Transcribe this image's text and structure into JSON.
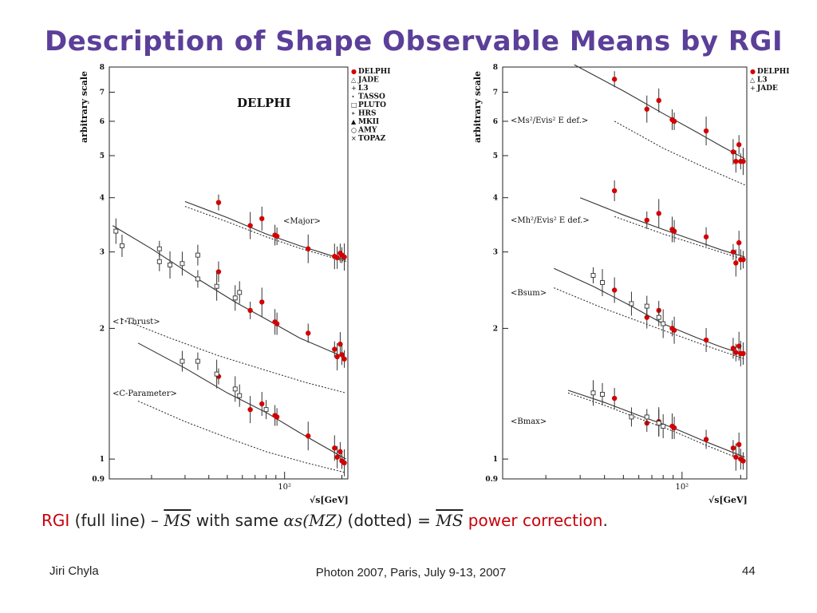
{
  "slide": {
    "title": "Description of Shape Observable Means by RGI",
    "caption": {
      "rgi": "RGI",
      "part1": " (full line) – ",
      "ms1": "MS",
      "part2": " with same ",
      "alpha": "αs(MZ)",
      "part3": " (dotted) = ",
      "ms2": "MS",
      "part4": " power correction",
      "period": "."
    },
    "footer": {
      "author": "Jiri Chyla",
      "event": "Photon 2007, Paris, July 9-13, 2007",
      "page": "44"
    }
  },
  "colors": {
    "title": "#5b3f99",
    "delphi": "#d40000",
    "fit": "#333333",
    "caption_red": "#c8000a"
  },
  "chart_data": [
    {
      "type": "scatter",
      "title": "DELPHI",
      "ylabel": "arbitrary scale",
      "xlabel": "√s[GeV]",
      "log_x": true,
      "log_y": true,
      "xlim": [
        12,
        215
      ],
      "ylim": [
        0.9,
        8
      ],
      "x_ticks": [
        "10²"
      ],
      "y_ticks": [
        "0.9",
        "1",
        "2",
        "3",
        "4",
        "5",
        "6",
        "7",
        "8"
      ],
      "legend": [
        "DELPHI",
        "JADE",
        "L3",
        "TASSO",
        "PLUTO",
        "HRS",
        "MKII",
        "AMY",
        "TOPAZ"
      ],
      "legend_placement": "top-right outside",
      "curve_labels": [
        "<Major>",
        "<1-Thrust>",
        "<C-Parameter>"
      ],
      "series": [
        {
          "name": "<Major> DELPHI",
          "marker": "dot",
          "x": [
            45,
            66,
            76,
            89,
            91.2,
            133,
            183,
            189,
            196,
            200,
            206
          ],
          "y": [
            3.9,
            3.45,
            3.58,
            3.28,
            3.26,
            3.05,
            2.93,
            2.91,
            2.98,
            2.95,
            2.92
          ]
        },
        {
          "name": "<1-Thrust> DELPHI",
          "marker": "dot",
          "x": [
            45,
            66,
            76,
            89,
            91.2,
            133,
            183,
            189,
            196,
            200,
            206
          ],
          "y": [
            2.7,
            2.2,
            2.3,
            2.07,
            2.05,
            1.95,
            1.79,
            1.72,
            1.84,
            1.74,
            1.7
          ]
        },
        {
          "name": "<1-Thrust> other",
          "marker": "open",
          "x": [
            13,
            14,
            22,
            22,
            25,
            29,
            35,
            35,
            44,
            55,
            58
          ],
          "y": [
            3.35,
            3.1,
            2.85,
            3.05,
            2.8,
            2.82,
            2.95,
            2.6,
            2.5,
            2.35,
            2.42
          ]
        },
        {
          "name": "<C-Parameter> DELPHI",
          "marker": "dot",
          "x": [
            45,
            66,
            76,
            89,
            91.2,
            133,
            183,
            189,
            196,
            200,
            206
          ],
          "y": [
            1.55,
            1.3,
            1.34,
            1.26,
            1.25,
            1.13,
            1.06,
            1.01,
            1.04,
            0.99,
            0.98
          ]
        },
        {
          "name": "<C-Parameter> other",
          "marker": "open",
          "x": [
            29,
            35,
            44,
            55,
            58,
            80
          ],
          "y": [
            1.68,
            1.68,
            1.57,
            1.45,
            1.4,
            1.3
          ]
        }
      ],
      "fits": [
        {
          "name": "<Major> RGI",
          "style": "solid",
          "x": [
            30,
            50,
            80,
            120,
            160,
            210
          ],
          "y": [
            3.92,
            3.6,
            3.3,
            3.1,
            2.98,
            2.87
          ]
        },
        {
          "name": "<Major> MS-bar",
          "style": "dotted",
          "x": [
            30,
            50,
            80,
            120,
            160,
            210
          ],
          "y": [
            3.82,
            3.52,
            3.25,
            3.06,
            2.95,
            2.85
          ]
        },
        {
          "name": "<1-Thrust> RGI",
          "style": "solid",
          "x": [
            12.5,
            20,
            35,
            55,
            80,
            120,
            160,
            210
          ],
          "y": [
            3.45,
            3.05,
            2.6,
            2.3,
            2.1,
            1.9,
            1.8,
            1.71
          ]
        },
        {
          "name": "<1-Thrust> MS-bar",
          "style": "dotted",
          "x": [
            14,
            25,
            45,
            80,
            130,
            210
          ],
          "y": [
            2.1,
            1.9,
            1.73,
            1.6,
            1.5,
            1.42
          ]
        },
        {
          "name": "<C-Parameter> RGI",
          "style": "solid",
          "x": [
            17,
            30,
            50,
            80,
            120,
            160,
            210
          ],
          "y": [
            1.85,
            1.62,
            1.42,
            1.28,
            1.15,
            1.07,
            1.0
          ]
        },
        {
          "name": "<C-Parameter> MS-bar",
          "style": "dotted",
          "x": [
            17,
            30,
            50,
            80,
            130,
            210
          ],
          "y": [
            1.36,
            1.22,
            1.12,
            1.04,
            0.98,
            0.93
          ]
        }
      ]
    },
    {
      "type": "scatter",
      "ylabel": "arbitrary scale",
      "xlabel": "√s[GeV]",
      "log_x": true,
      "log_y": true,
      "xlim": [
        12,
        215
      ],
      "ylim": [
        0.9,
        8
      ],
      "x_ticks": [
        "10²"
      ],
      "y_ticks": [
        "0.9",
        "1",
        "2",
        "3",
        "4",
        "5",
        "6",
        "7",
        "8"
      ],
      "legend": [
        "DELPHI",
        "L3",
        "JADE"
      ],
      "legend_placement": "top-right outside",
      "curve_labels": [
        "<Ms²/Evis² E def.>",
        "<Mh²/Evis² E def.>",
        "<Bsum>",
        "<Bmax>"
      ],
      "series": [
        {
          "name": "<Ms2/Evis2> DELPHI",
          "marker": "dot",
          "x": [
            45,
            66,
            76,
            89,
            91.2,
            133,
            183,
            189,
            196,
            200,
            206
          ],
          "y": [
            7.5,
            6.4,
            6.7,
            6.05,
            6.0,
            5.7,
            5.1,
            4.85,
            5.3,
            4.85,
            4.85
          ]
        },
        {
          "name": "<Mh2/Evis2> DELPHI",
          "marker": "dot",
          "x": [
            45,
            66,
            76,
            89,
            91.2,
            133,
            183,
            189,
            196,
            200,
            206
          ],
          "y": [
            4.15,
            3.55,
            3.68,
            3.38,
            3.35,
            3.25,
            3.0,
            2.83,
            3.15,
            2.88,
            2.88
          ]
        },
        {
          "name": "<Bsum> DELPHI",
          "marker": "dot",
          "x": [
            45,
            66,
            76,
            89,
            91.2,
            133,
            183,
            189,
            196,
            200,
            206
          ],
          "y": [
            2.45,
            2.12,
            2.2,
            2.0,
            1.98,
            1.88,
            1.8,
            1.76,
            1.82,
            1.75,
            1.75
          ]
        },
        {
          "name": "<Bsum> other",
          "marker": "open",
          "x": [
            35,
            39,
            55,
            66,
            76,
            80
          ],
          "y": [
            2.65,
            2.55,
            2.28,
            2.25,
            2.12,
            2.05
          ]
        },
        {
          "name": "<Bmax> DELPHI",
          "marker": "dot",
          "x": [
            45,
            66,
            76,
            89,
            91.2,
            133,
            183,
            189,
            196,
            200,
            206
          ],
          "y": [
            1.38,
            1.21,
            1.22,
            1.19,
            1.18,
            1.11,
            1.06,
            1.01,
            1.08,
            1.0,
            0.99
          ]
        },
        {
          "name": "<Bmax> other",
          "marker": "open",
          "x": [
            35,
            39,
            55,
            66,
            76,
            80
          ],
          "y": [
            1.42,
            1.41,
            1.25,
            1.25,
            1.21,
            1.19
          ]
        }
      ],
      "fits": [
        {
          "name": "<Ms2/Evis2> RGI",
          "style": "solid",
          "x": [
            28,
            50,
            80,
            120,
            160,
            210
          ],
          "y": [
            8.1,
            7.05,
            6.25,
            5.65,
            5.25,
            4.92
          ]
        },
        {
          "name": "<Ms2/Evis2> MS-bar",
          "style": "dotted",
          "x": [
            45,
            80,
            130,
            210
          ],
          "y": [
            6.0,
            5.2,
            4.7,
            4.28
          ]
        },
        {
          "name": "<Mh2/Evis2> RGI",
          "style": "solid",
          "x": [
            30,
            50,
            80,
            120,
            160,
            210
          ],
          "y": [
            4.0,
            3.65,
            3.38,
            3.17,
            3.03,
            2.92
          ]
        },
        {
          "name": "<Mh2/Evis2> MS-bar",
          "style": "dotted",
          "x": [
            45,
            80,
            130,
            210
          ],
          "y": [
            3.62,
            3.3,
            3.08,
            2.88
          ]
        },
        {
          "name": "<Bsum> RGI",
          "style": "solid",
          "x": [
            22,
            35,
            55,
            80,
            120,
            160,
            210
          ],
          "y": [
            2.75,
            2.5,
            2.25,
            2.05,
            1.9,
            1.81,
            1.74
          ]
        },
        {
          "name": "<Bsum> MS-bar",
          "style": "dotted",
          "x": [
            22,
            40,
            80,
            130,
            210
          ],
          "y": [
            2.48,
            2.22,
            1.98,
            1.83,
            1.7
          ]
        },
        {
          "name": "<Bmax> RGI",
          "style": "solid",
          "x": [
            26,
            40,
            60,
            90,
            130,
            210
          ],
          "y": [
            1.44,
            1.35,
            1.26,
            1.18,
            1.1,
            1.01
          ]
        },
        {
          "name": "<Bmax> MS-bar",
          "style": "dotted",
          "x": [
            26,
            40,
            60,
            90,
            130,
            210
          ],
          "y": [
            1.42,
            1.33,
            1.24,
            1.16,
            1.08,
            0.99
          ]
        }
      ]
    }
  ]
}
